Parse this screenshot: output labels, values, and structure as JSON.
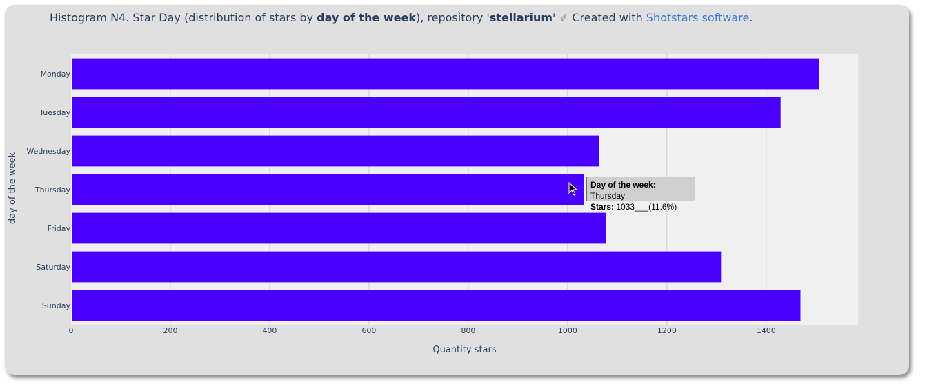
{
  "title": {
    "prefix": "Histogram N4. Star Day (distribution of stars by ",
    "bold1": "day of the week",
    "middle": "), repository '",
    "bold2": "stellarium",
    "suffix": "' ",
    "pencil": "✐",
    "created": " Created with ",
    "link": "Shotstars software",
    "end": "."
  },
  "colors": {
    "bar": "#4b00ff",
    "plot_bg": "#f0f0f0",
    "grid": "#d0d0d0"
  },
  "tooltip": {
    "day_label": "Day of the week:",
    "day_value": "Thursday",
    "stars_label": "Stars:",
    "stars_value": "1033___(11.6%)"
  },
  "chart_data": {
    "type": "bar",
    "orientation": "horizontal",
    "categories": [
      "Monday",
      "Tuesday",
      "Wednesday",
      "Thursday",
      "Friday",
      "Saturday",
      "Sunday"
    ],
    "values": [
      1507,
      1429,
      1063,
      1033,
      1077,
      1309,
      1469
    ],
    "xlabel": "Quantity stars",
    "ylabel": "day of the week",
    "xlim": [
      0,
      1585
    ],
    "xticks": [
      0,
      200,
      400,
      600,
      800,
      1000,
      1200,
      1400
    ]
  }
}
